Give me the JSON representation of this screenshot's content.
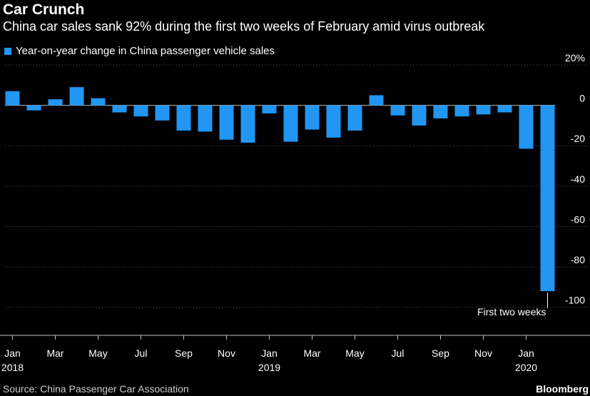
{
  "colors": {
    "background": "#000000",
    "bar": "#2196f3",
    "text": "#ffffff"
  },
  "brand": "Bloomberg",
  "source": "Source: China Passenger Car Association",
  "chart_data": {
    "type": "bar",
    "title": "Car Crunch",
    "subtitle": "China car sales sank 92% during the first two weeks of February amid virus outbreak",
    "legend": "Year-on-year change in China passenger vehicle sales",
    "legend_position": "top-left",
    "xlabel": "",
    "ylabel": "",
    "y_axis_side": "right",
    "ylim": [
      -110,
      20
    ],
    "yticks": [
      20,
      0,
      -20,
      -40,
      -60,
      -80,
      -100
    ],
    "ytick_labels": [
      "20%",
      "0",
      "-20",
      "-40",
      "-60",
      "-80",
      "-100"
    ],
    "grid": true,
    "categories": [
      "2018-01",
      "2018-02",
      "2018-03",
      "2018-04",
      "2018-05",
      "2018-06",
      "2018-07",
      "2018-08",
      "2018-09",
      "2018-10",
      "2018-11",
      "2018-12",
      "2019-01",
      "2019-02",
      "2019-03",
      "2019-04",
      "2019-05",
      "2019-06",
      "2019-07",
      "2019-08",
      "2019-09",
      "2019-10",
      "2019-11",
      "2019-12",
      "2020-01",
      "2020-02 (first two weeks)"
    ],
    "values": [
      7,
      -2.5,
      3,
      9,
      3.5,
      -3.5,
      -5.5,
      -7.5,
      -12.5,
      -13,
      -17,
      -18.5,
      -4,
      -18,
      -12,
      -16,
      -12.5,
      5,
      -5,
      -10,
      -6.5,
      -5.5,
      -4.5,
      -3.5,
      -21.5,
      -92
    ],
    "xtick_labels": [
      {
        "index": 0,
        "month": "Jan",
        "year": "2018"
      },
      {
        "index": 2,
        "month": "Mar",
        "year": ""
      },
      {
        "index": 4,
        "month": "May",
        "year": ""
      },
      {
        "index": 6,
        "month": "Jul",
        "year": ""
      },
      {
        "index": 8,
        "month": "Sep",
        "year": ""
      },
      {
        "index": 10,
        "month": "Nov",
        "year": ""
      },
      {
        "index": 12,
        "month": "Jan",
        "year": "2019"
      },
      {
        "index": 14,
        "month": "Mar",
        "year": ""
      },
      {
        "index": 16,
        "month": "May",
        "year": ""
      },
      {
        "index": 18,
        "month": "Jul",
        "year": ""
      },
      {
        "index": 20,
        "month": "Sep",
        "year": ""
      },
      {
        "index": 22,
        "month": "Nov",
        "year": ""
      },
      {
        "index": 24,
        "month": "Jan",
        "year": "2020"
      }
    ],
    "annotation": {
      "text": "First two weeks",
      "bar_index": 25
    }
  }
}
